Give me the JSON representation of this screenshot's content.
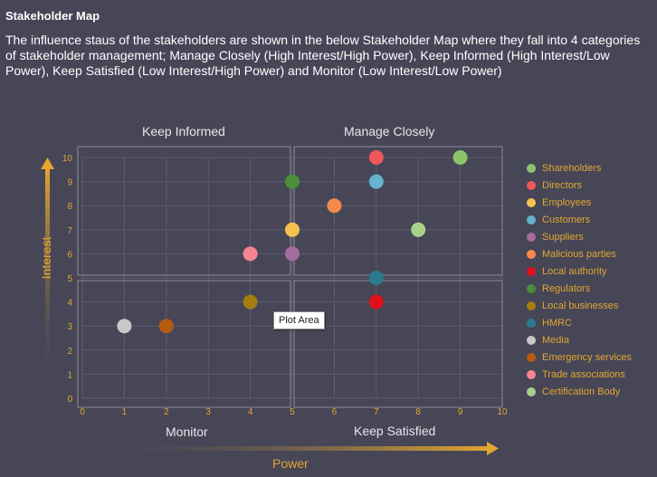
{
  "header": {
    "title": "Stakeholder Map",
    "description": "The influence staus of the stakeholders are shown in the below Stakeholder Map where they fall into 4 categories of stakeholder management; Manage Closely (High Interest/High Power), Keep Informed (High Interest/Low Power), Keep Satisfied (Low Interest/High Power) and Monitor (Low Interest/Low Power)"
  },
  "quadrants": {
    "top_left": "Keep Informed",
    "top_right": "Manage Closely",
    "bottom_left": "Monitor",
    "bottom_right": "Keep Satisfied"
  },
  "tooltip": {
    "text": "Plot Area"
  },
  "colors": {
    "background": "#464657",
    "axis_accent": "#e3a62f",
    "grid": "#5c5c6e",
    "quadrant_border": "#8c8c9a"
  },
  "chart_data": {
    "type": "scatter",
    "xlabel": "Power",
    "ylabel": "Interest",
    "xlim": [
      0,
      10
    ],
    "ylim": [
      0,
      10
    ],
    "x_ticks": [
      "0",
      "1",
      "2",
      "3",
      "4",
      "5",
      "6",
      "7",
      "8",
      "9",
      "10"
    ],
    "y_ticks": [
      "0",
      "1",
      "2",
      "3",
      "4",
      "5",
      "6",
      "7",
      "8",
      "9",
      "10"
    ],
    "grid": true,
    "legend_position": "right",
    "series": [
      {
        "name": "Shareholders",
        "color": "#8dc36b",
        "x": 9,
        "y": 10
      },
      {
        "name": "Directors",
        "color": "#f0575b",
        "x": 7,
        "y": 10
      },
      {
        "name": "Employees",
        "color": "#f4c250",
        "x": 5,
        "y": 7
      },
      {
        "name": "Customers",
        "color": "#64b3cf",
        "x": 7,
        "y": 9
      },
      {
        "name": "Suppliers",
        "color": "#a56ca0",
        "x": 5,
        "y": 6
      },
      {
        "name": "Malicious parties",
        "color": "#f58a4a",
        "x": 6,
        "y": 8
      },
      {
        "name": "Local authority",
        "color": "#e0111b",
        "x": 7,
        "y": 4
      },
      {
        "name": "Regulators",
        "color": "#4c8f3a",
        "x": 5,
        "y": 9
      },
      {
        "name": "Local businesses",
        "color": "#a57e12",
        "x": 4,
        "y": 4
      },
      {
        "name": "HMRC",
        "color": "#2c7a8d",
        "x": 7,
        "y": 5
      },
      {
        "name": "Media",
        "color": "#c8c8c8",
        "x": 1,
        "y": 3
      },
      {
        "name": "Emergency services",
        "color": "#b75a12",
        "x": 2,
        "y": 3
      },
      {
        "name": "Trade associations",
        "color": "#f4858f",
        "x": 4,
        "y": 6
      },
      {
        "name": "Certification Body",
        "color": "#a8d18a",
        "x": 8,
        "y": 7
      }
    ]
  }
}
